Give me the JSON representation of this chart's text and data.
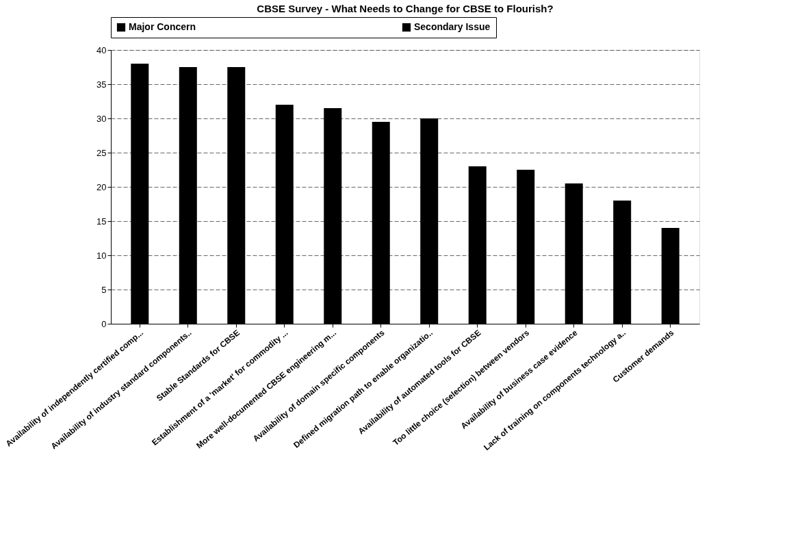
{
  "chart_data": {
    "type": "bar",
    "title": "CBSE Survey - What Needs to Change for CBSE to Flourish?",
    "categories": [
      "Availability of independently certified comp...",
      "Availability of industry standard components..",
      "Stable Standards for CBSE",
      "Establishment of a 'market' for commodity ...",
      "More well-documented CBSE engineering m...",
      "Availability of domain specific components",
      "Defined migration path to enable organizatio..",
      "Availability of automated tools for CBSE",
      "Too little choice (selection) between vendors",
      "Availability of business case evidence",
      "Lack of training on components technology a..",
      "Customer demands"
    ],
    "series": [
      {
        "name": "Major Concern",
        "color": "#000000",
        "values": [
          38,
          37.5,
          37.5,
          32,
          31.5,
          29.5,
          30,
          23,
          22.5,
          20.5,
          18,
          14
        ]
      },
      {
        "name": "Secondary Issue",
        "color": "#000000",
        "values": [
          null,
          null,
          null,
          null,
          null,
          null,
          null,
          null,
          null,
          null,
          null,
          null
        ]
      }
    ],
    "ylim": [
      0,
      40
    ],
    "yticks": [
      0,
      5,
      10,
      15,
      20,
      25,
      30,
      35,
      40
    ],
    "grid": "y",
    "legend": "top"
  }
}
